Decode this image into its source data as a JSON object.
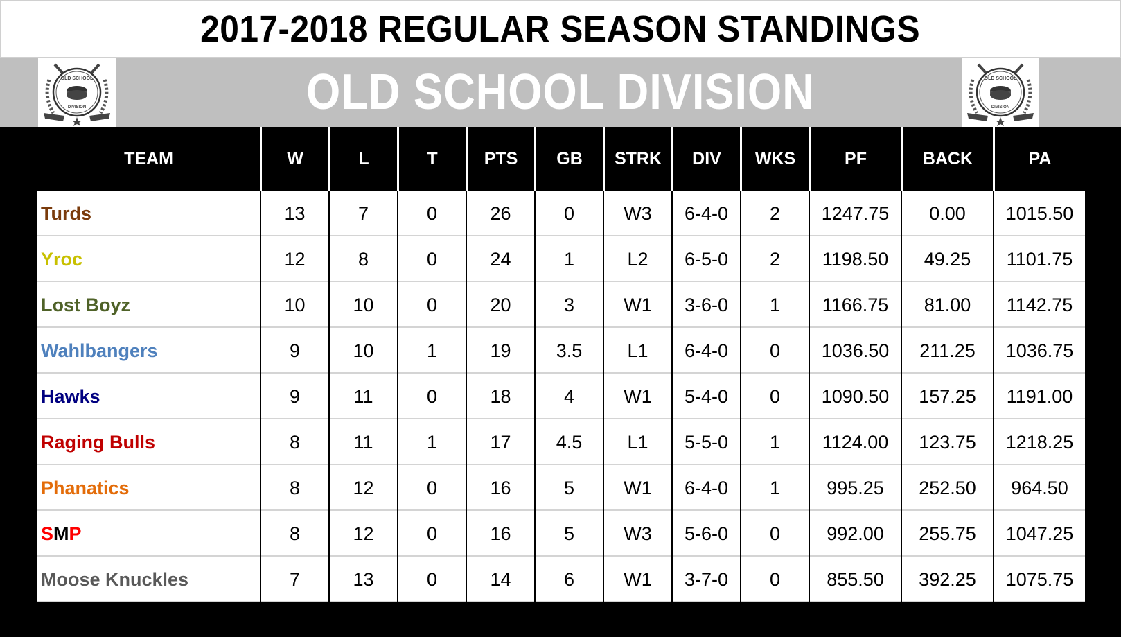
{
  "title": "2017-2018 REGULAR SEASON STANDINGS",
  "division": "OLD SCHOOL DIVISION",
  "logo": {
    "top_text": "OLD SCHOOL",
    "bottom_text": "DIVISION",
    "icon": "hockey-puck-crest-icon"
  },
  "columns": [
    "TEAM",
    "W",
    "L",
    "T",
    "PTS",
    "GB",
    "STRK",
    "DIV",
    "WKS",
    "PF",
    "BACK",
    "PA"
  ],
  "rows": [
    {
      "team": "Turds",
      "color": "#7a3b0c",
      "W": "13",
      "L": "7",
      "T": "0",
      "PTS": "26",
      "GB": "0",
      "STRK": "W3",
      "DIV": "6-4-0",
      "WKS": "2",
      "PF": "1247.75",
      "BACK": "0.00",
      "PA": "1015.50"
    },
    {
      "team": "Yroc",
      "color": "#c8c000",
      "W": "12",
      "L": "8",
      "T": "0",
      "PTS": "24",
      "GB": "1",
      "STRK": "L2",
      "DIV": "6-5-0",
      "WKS": "2",
      "PF": "1198.50",
      "BACK": "49.25",
      "PA": "1101.75"
    },
    {
      "team": "Lost Boyz",
      "color": "#4f6228",
      "W": "10",
      "L": "10",
      "T": "0",
      "PTS": "20",
      "GB": "3",
      "STRK": "W1",
      "DIV": "3-6-0",
      "WKS": "1",
      "PF": "1166.75",
      "BACK": "81.00",
      "PA": "1142.75"
    },
    {
      "team": "Wahlbangers",
      "color": "#4f81bd",
      "W": "9",
      "L": "10",
      "T": "1",
      "PTS": "19",
      "GB": "3.5",
      "STRK": "L1",
      "DIV": "6-4-0",
      "WKS": "0",
      "PF": "1036.50",
      "BACK": "211.25",
      "PA": "1036.75"
    },
    {
      "team": "Hawks",
      "color": "#000080",
      "W": "9",
      "L": "11",
      "T": "0",
      "PTS": "18",
      "GB": "4",
      "STRK": "W1",
      "DIV": "5-4-0",
      "WKS": "0",
      "PF": "1090.50",
      "BACK": "157.25",
      "PA": "1191.00"
    },
    {
      "team": "Raging Bulls",
      "color": "#c00000",
      "W": "8",
      "L": "11",
      "T": "1",
      "PTS": "17",
      "GB": "4.5",
      "STRK": "L1",
      "DIV": "5-5-0",
      "WKS": "1",
      "PF": "1124.00",
      "BACK": "123.75",
      "PA": "1218.25"
    },
    {
      "team": "Phanatics",
      "color": "#e36c09",
      "W": "8",
      "L": "12",
      "T": "0",
      "PTS": "16",
      "GB": "5",
      "STRK": "W1",
      "DIV": "6-4-0",
      "WKS": "1",
      "PF": "995.25",
      "BACK": "252.50",
      "PA": "964.50"
    },
    {
      "team": "SMP",
      "color": "#ff0000",
      "team_parts": [
        {
          "text": "S",
          "color": "#ff0000"
        },
        {
          "text": "M",
          "color": "#000000"
        },
        {
          "text": "P",
          "color": "#ff0000"
        }
      ],
      "W": "8",
      "L": "12",
      "T": "0",
      "PTS": "16",
      "GB": "5",
      "STRK": "W3",
      "DIV": "5-6-0",
      "WKS": "0",
      "PF": "992.00",
      "BACK": "255.75",
      "PA": "1047.25"
    },
    {
      "team": "Moose Knuckles",
      "color": "#595959",
      "W": "7",
      "L": "13",
      "T": "0",
      "PTS": "14",
      "GB": "6",
      "STRK": "W1",
      "DIV": "3-7-0",
      "WKS": "0",
      "PF": "855.50",
      "BACK": "392.25",
      "PA": "1075.75"
    }
  ],
  "colors": {
    "header_bg": "#000000",
    "band_grey": "#bfbfbf",
    "row_divider": "#d4d4d4"
  }
}
